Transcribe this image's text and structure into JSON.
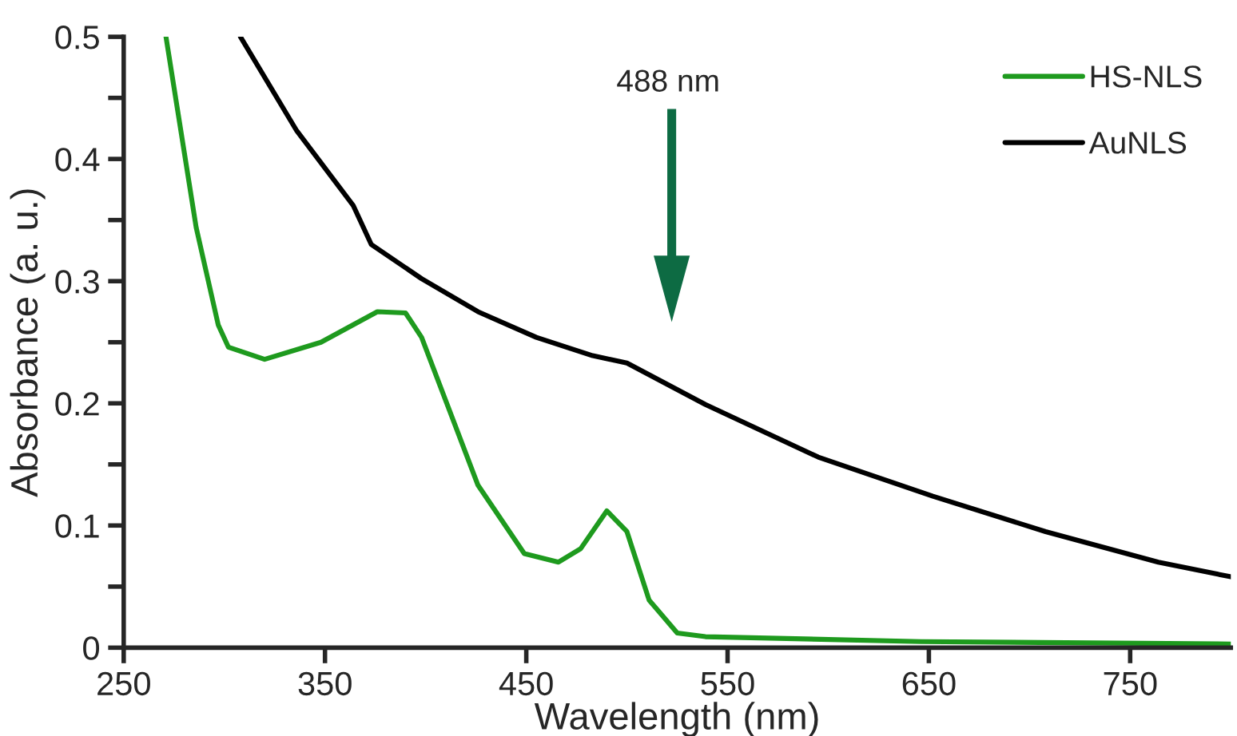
{
  "chart_data": {
    "type": "line",
    "xlabel": "Wavelength (nm)",
    "ylabel": "Absorbance (a. u.)",
    "xlim": [
      250,
      800
    ],
    "ylim": [
      0,
      0.5
    ],
    "xticks": [
      250,
      350,
      450,
      550,
      650,
      750
    ],
    "yticks": [
      0,
      {
        "value": 0.05,
        "label": null
      },
      0.1,
      {
        "value": 0.15,
        "label": null
      },
      0.2,
      {
        "value": 0.25,
        "label": null
      },
      0.3,
      {
        "value": 0.35,
        "label": null
      },
      0.4,
      {
        "value": 0.45,
        "label": null
      },
      0.5
    ],
    "grid": false,
    "legend": "top right",
    "line_style": "solid",
    "marker": "none",
    "annotations": [
      "488 nm"
    ],
    "series": [
      {
        "name": "HS-NLS",
        "color": "#1e9a1e",
        "x": [
          271,
          286,
          297,
          302,
          320,
          348,
          376,
          390,
          398,
          426,
          449,
          466,
          477,
          490,
          500,
          511,
          525,
          539,
          646,
          800
        ],
        "values": [
          0.5,
          0.344,
          0.264,
          0.246,
          0.236,
          0.25,
          0.275,
          0.274,
          0.254,
          0.133,
          0.077,
          0.07,
          0.081,
          0.112,
          0.095,
          0.039,
          0.012,
          0.009,
          0.005,
          0.003
        ]
      },
      {
        "name": "AuNLS",
        "color": "#000000",
        "x": [
          308,
          336,
          364,
          373,
          398,
          426,
          455,
          483,
          500,
          539,
          595,
          652,
          708,
          764,
          800
        ],
        "values": [
          0.5,
          0.423,
          0.362,
          0.33,
          0.302,
          0.275,
          0.254,
          0.239,
          0.233,
          0.199,
          0.156,
          0.124,
          0.095,
          0.07,
          0.058
        ]
      }
    ]
  }
}
